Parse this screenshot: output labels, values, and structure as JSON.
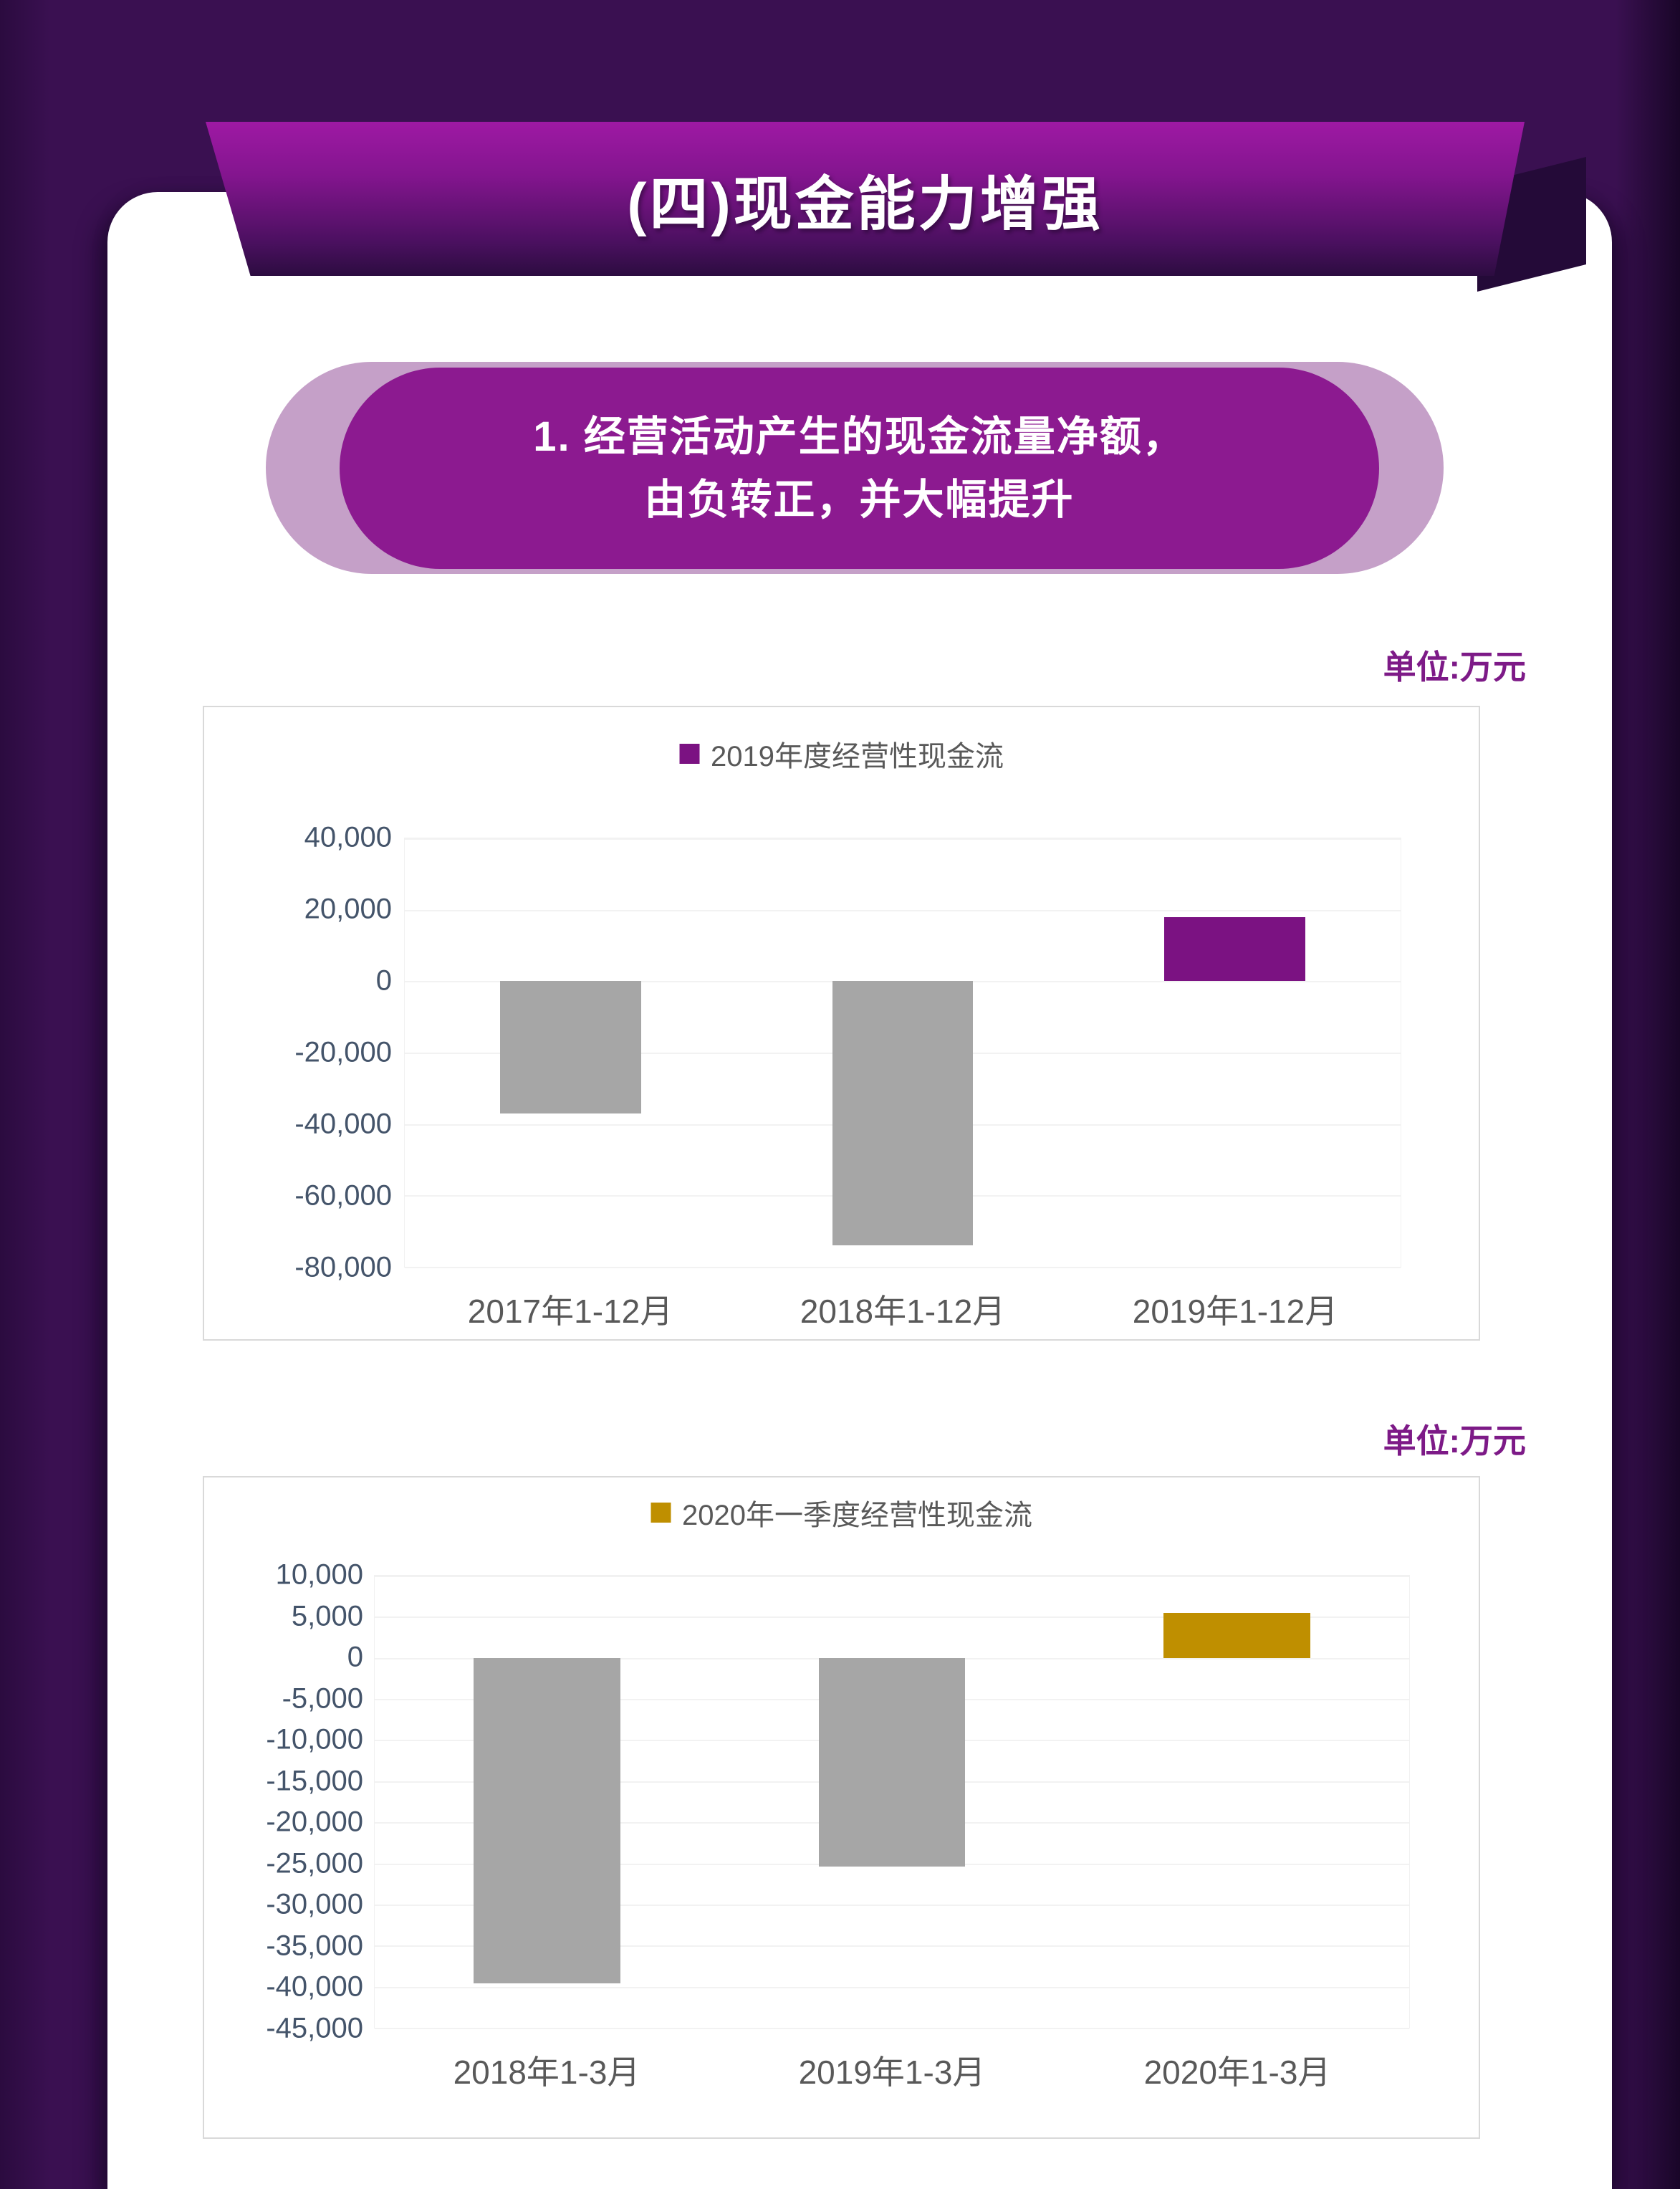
{
  "page": {
    "banner_title": "(四)现金能力增强",
    "subtitle_line1": "1. 经营活动产生的现金流量净额，",
    "subtitle_line2": "由负转正，并大幅提升",
    "unit_label_top": "单位:万元",
    "unit_label_bottom": "单位:万元"
  },
  "colors": {
    "page_background": "#3a1051",
    "banner_gradient_top": "#9e19a4",
    "banner_gradient_bottom": "#2c0c40",
    "pill_outer": "#c5a0c8",
    "pill_inner": "#8c1a90",
    "unit_label": "#7d1a87",
    "axis_tick_text": "#44546a",
    "category_text": "#595959",
    "gridline": "#f2f2f2",
    "neutral_bar": "#a6a6a6",
    "accent_purple": "#7b1282",
    "accent_gold": "#bf8f00"
  },
  "chart_data": [
    {
      "type": "bar",
      "legend": "2019年度经营性现金流",
      "legend_color": "#7b1282",
      "legend_position": "top",
      "categories": [
        "2017年1-12月",
        "2018年1-12月",
        "2019年1-12月"
      ],
      "values": [
        -37000,
        -74000,
        18000
      ],
      "bar_colors": [
        "#a6a6a6",
        "#a6a6a6",
        "#7b1282"
      ],
      "ylim": [
        -80000,
        40000
      ],
      "ytick_step": 20000,
      "grid": true,
      "xlabel": "",
      "ylabel": "单位:万元"
    },
    {
      "type": "bar",
      "legend": "2020年一季度经营性现金流",
      "legend_color": "#bf8f00",
      "legend_position": "top",
      "categories": [
        "2018年1-3月",
        "2019年1-3月",
        "2020年1-3月"
      ],
      "values": [
        -39600,
        -25400,
        5500
      ],
      "bar_colors": [
        "#a6a6a6",
        "#a6a6a6",
        "#bf8f00"
      ],
      "ylim": [
        -45000,
        10000
      ],
      "ytick_step": 5000,
      "grid": true,
      "xlabel": "",
      "ylabel": "单位:万元"
    }
  ]
}
